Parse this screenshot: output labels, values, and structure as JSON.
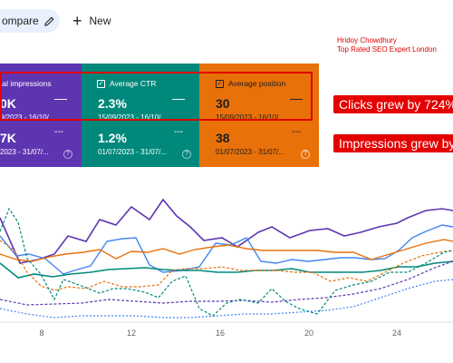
{
  "toolbar": {
    "compare_label": "ompare",
    "new_label": "New",
    "plus": "+"
  },
  "author": {
    "name": "Hridoy Chowdhury",
    "tagline": "Top Rated SEO Expert London"
  },
  "cards": [
    {
      "key": "impressions",
      "title": "tal impressions",
      "current_value": "0K",
      "current_range": "9/2023 - 16/10/...",
      "prev_value": "7K",
      "prev_range": "2023 - 31/07/...",
      "color": "#5e35b1"
    },
    {
      "key": "ctr",
      "title": "Average CTR",
      "current_value": "2.3%",
      "current_range": "15/09/2023 - 16/10/...",
      "prev_value": "1.2%",
      "prev_range": "01/07/2023 - 31/07/...",
      "color": "#00897b"
    },
    {
      "key": "position",
      "title": "Average position",
      "current_value": "30",
      "current_range": "15/09/2023 - 16/10/...",
      "prev_value": "38",
      "prev_range": "01/07/2023 - 31/07/...",
      "color": "#e8710a"
    }
  ],
  "callouts": {
    "clicks": "Clicks grew by 724%",
    "impressions": "Impressions grew by"
  },
  "chart": {
    "x_ticks": [
      "8",
      "12",
      "16",
      "20",
      "24"
    ],
    "colors": {
      "impressions": "#5e35b1",
      "ctr": "#00897b",
      "position": "#e8710a",
      "clicks": "#4285f4"
    }
  },
  "icons": {
    "pencil": "pencil-icon",
    "check": "check-icon",
    "help": "help-icon"
  }
}
